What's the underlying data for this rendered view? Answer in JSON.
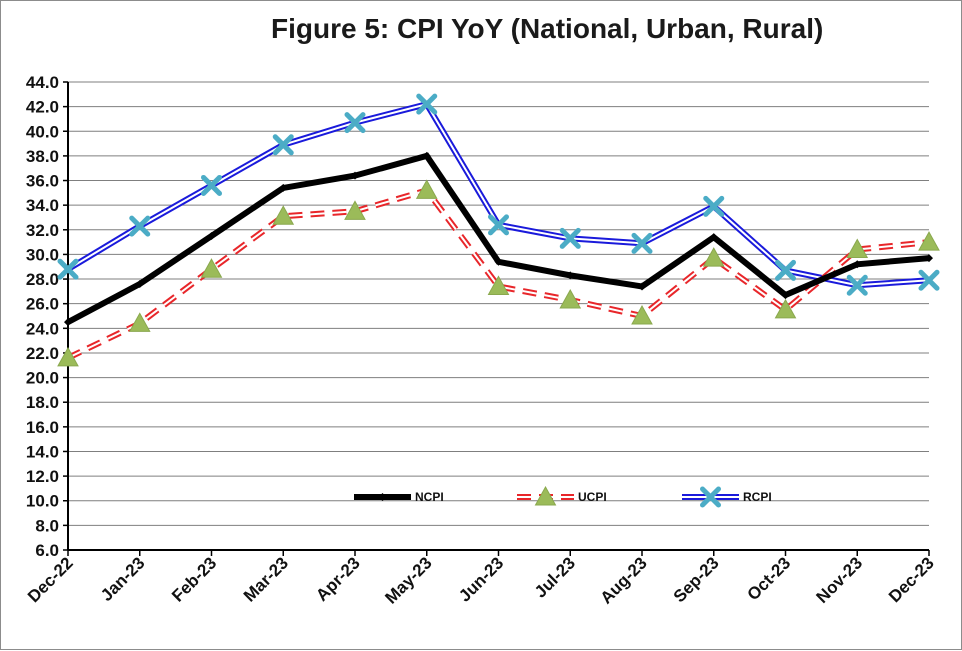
{
  "title": "Figure 5: CPI YoY (National, Urban, Rural)",
  "chart_data": {
    "type": "line",
    "title": "Figure 5: CPI YoY (National, Urban, Rural)",
    "categories": [
      "Dec-22",
      "Jan-23",
      "Feb-23",
      "Mar-23",
      "Apr-23",
      "May-23",
      "Jun-23",
      "Jul-23",
      "Aug-23",
      "Sep-23",
      "Oct-23",
      "Nov-23",
      "Dec-23"
    ],
    "ylim": [
      6.0,
      44.0
    ],
    "ytick_step": 2.0,
    "grid": true,
    "legend_position": "bottom-center (inside plot)",
    "series": [
      {
        "name": "NCPI",
        "color": "#000000",
        "marker": "diamond",
        "values": [
          24.5,
          27.6,
          31.5,
          35.4,
          36.4,
          38.0,
          29.4,
          28.3,
          27.4,
          31.4,
          26.7,
          29.2,
          29.7
        ]
      },
      {
        "name": "UCPI",
        "color": "#e8262a",
        "marker": "triangle",
        "values": [
          21.6,
          24.4,
          28.8,
          33.1,
          33.5,
          35.2,
          27.4,
          26.3,
          25.0,
          29.7,
          25.5,
          30.4,
          31.0
        ]
      },
      {
        "name": "RCPI",
        "color": "#1a1adb",
        "marker": "x-cyan",
        "values": [
          28.8,
          32.3,
          35.6,
          38.9,
          40.7,
          42.2,
          32.4,
          31.3,
          30.9,
          33.9,
          28.7,
          27.5,
          27.9
        ]
      }
    ]
  }
}
